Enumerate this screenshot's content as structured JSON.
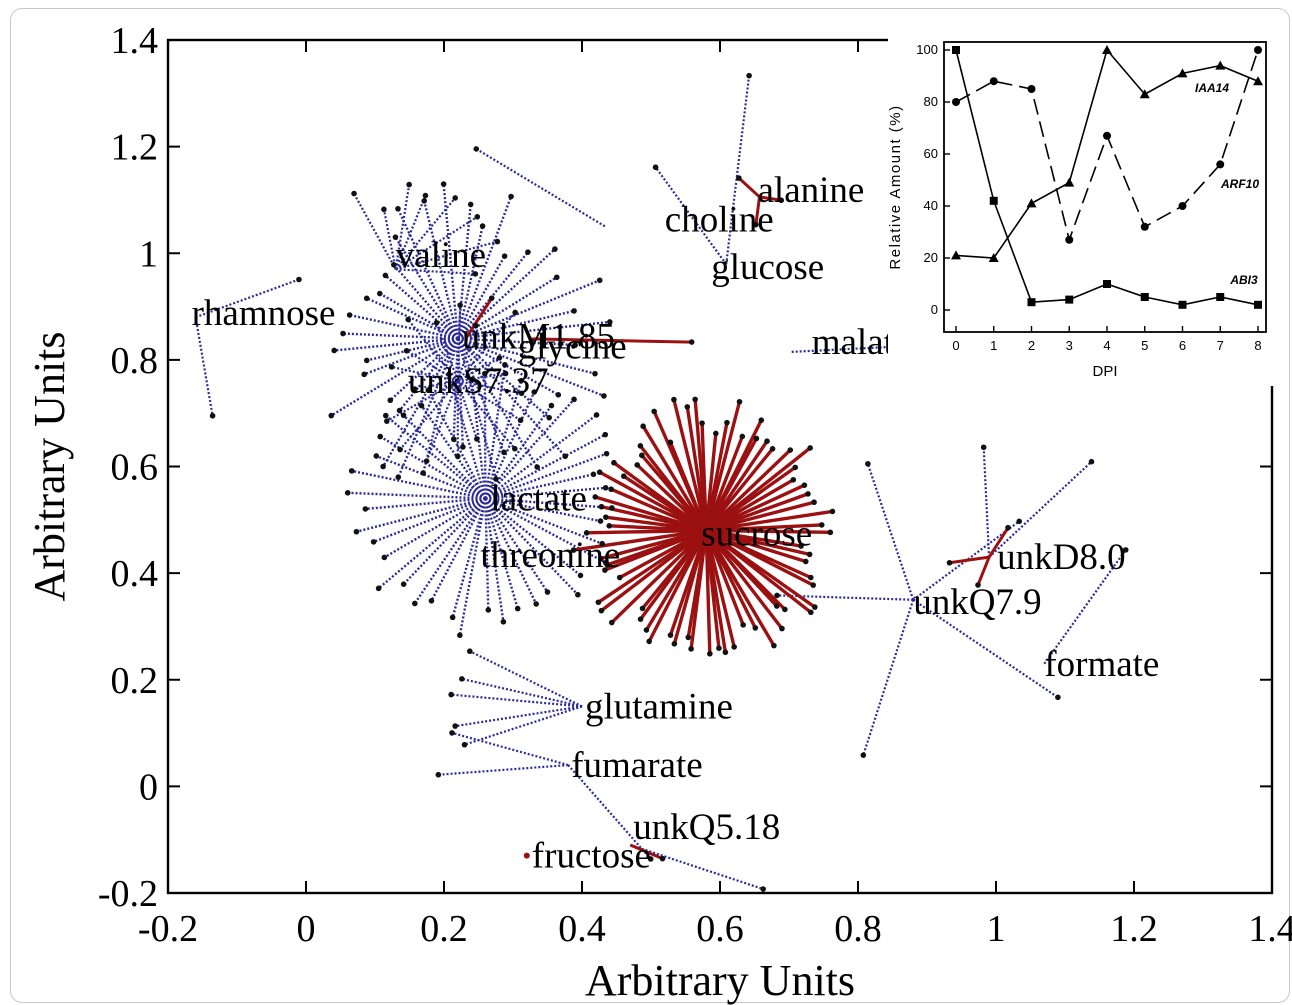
{
  "chart_data": [
    {
      "type": "scatter",
      "title": "",
      "xlabel": "Arbitrary Units",
      "ylabel": "Arbitrary Units",
      "xlim": [
        -0.2,
        1.4
      ],
      "ylim": [
        -0.2,
        1.4
      ],
      "xticks": [
        "-0.2",
        "0",
        "0.2",
        "0.4",
        "0.6",
        "0.8",
        "1",
        "1.2",
        "1.4"
      ],
      "yticks": [
        "-0.2",
        "0",
        "0.2",
        "0.4",
        "0.6",
        "0.8",
        "1",
        "1.2",
        "1.4"
      ],
      "grid": false,
      "legend": "none",
      "colors": {
        "dotted_edges": "#2a2a9a",
        "solid_edges": "#9b1010",
        "points": "#111111",
        "labels": "#000000"
      },
      "metabolites": [
        {
          "name": "rhamnose",
          "x": -0.16,
          "y": 0.88
        },
        {
          "name": "valine",
          "x": 0.13,
          "y": 0.97
        },
        {
          "name": "unkM1.85",
          "x": 0.22,
          "y": 0.84
        },
        {
          "name": "choline",
          "x": 0.52,
          "y": 1.06
        },
        {
          "name": "alanine",
          "x": 0.65,
          "y": 1.1
        },
        {
          "name": "glucose",
          "x": 0.58,
          "y": 0.97
        },
        {
          "name": "malate",
          "x": 0.53,
          "y": 0.83
        },
        {
          "name": "unkS7.37",
          "x": 0.22,
          "y": 0.76
        },
        {
          "name": "lactate",
          "x": 0.26,
          "y": 0.54
        },
        {
          "name": "sucrose",
          "x": 0.58,
          "y": 0.48
        },
        {
          "name": "threonine",
          "x": 0.26,
          "y": 0.44
        },
        {
          "name": "unkD8.0",
          "x": 0.99,
          "y": 0.43
        },
        {
          "name": "unkQ7.9",
          "x": 0.88,
          "y": 0.35
        },
        {
          "name": "formate",
          "x": 1.07,
          "y": 0.23
        },
        {
          "name": "glutamine",
          "x": 0.4,
          "y": 0.15
        },
        {
          "name": "fumarate",
          "x": 0.38,
          "y": 0.04
        },
        {
          "name": "unkQ5.18",
          "x": 0.47,
          "y": -0.11
        },
        {
          "name": "fructose",
          "x": 0.32,
          "y": -0.13
        }
      ],
      "overlapping_label": "glycine"
    },
    {
      "type": "line",
      "title": "",
      "xlabel": "DPI",
      "ylabel": "Relative Amount (%)",
      "x": [
        0,
        1,
        2,
        3,
        4,
        5,
        6,
        7,
        8
      ],
      "xlim": [
        0,
        8
      ],
      "ylim": [
        0,
        100
      ],
      "yticks": [
        0,
        20,
        40,
        60,
        80,
        100
      ],
      "series": [
        {
          "name": "IAA14",
          "marker": "triangle",
          "line": "solid",
          "values": [
            21,
            20,
            41,
            49,
            100,
            83,
            91,
            94,
            88
          ]
        },
        {
          "name": "ARF10",
          "marker": "circle",
          "line": "dashed",
          "values": [
            80,
            88,
            85,
            27,
            67,
            32,
            40,
            56,
            100
          ]
        },
        {
          "name": "ABI3",
          "marker": "square",
          "line": "solid",
          "values": [
            100,
            42,
            3,
            4,
            10,
            5,
            2,
            5,
            2
          ]
        }
      ]
    }
  ]
}
